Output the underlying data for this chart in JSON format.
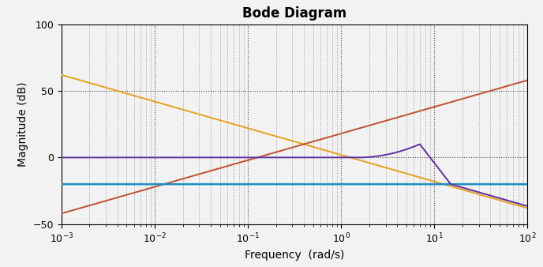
{
  "title": "Bode Diagram",
  "xlabel": "Frequency  (rad/s)",
  "ylabel": "Magnitude (dB)",
  "xlim": [
    0.001,
    100.0
  ],
  "ylim": [
    -50,
    100
  ],
  "yticks": [
    -50,
    0,
    50,
    100
  ],
  "background_color": "#f2f2f2",
  "plot_bg_color": "#f2f2f2",
  "grid_color": "#000000",
  "line_colors": {
    "orange": "#e8a020",
    "red": "#c05030",
    "blue": "#1890c8",
    "purple": "#6030a0"
  },
  "orange_start_db": 62,
  "orange_slope": -20,
  "red_zero_freq_log": -0.9,
  "red_slope": 20,
  "blue_level": -20,
  "purple_peak_db": 10,
  "purple_peak_freq": 7.0
}
